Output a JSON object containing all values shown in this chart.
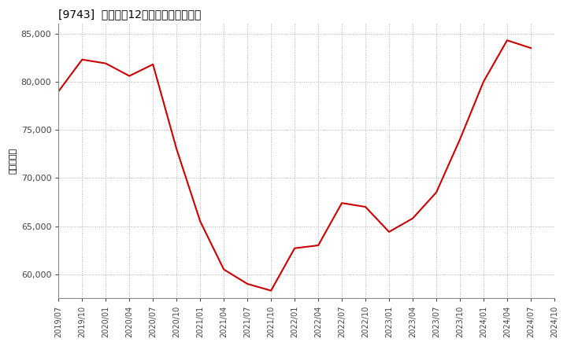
{
  "title": "[9743]  売上高の12か月移動合計の推移",
  "ylabel": "（百万円）",
  "line_color": "#cc0000",
  "background_color": "#ffffff",
  "grid_color": "#b0b0b0",
  "ylim": [
    57500,
    86000
  ],
  "yticks": [
    60000,
    65000,
    70000,
    75000,
    80000,
    85000
  ],
  "xtick_labels": [
    "2019/07",
    "2019/10",
    "2020/01",
    "2020/04",
    "2020/07",
    "2020/10",
    "2021/01",
    "2021/04",
    "2021/07",
    "2021/10",
    "2022/01",
    "2022/04",
    "2022/07",
    "2022/10",
    "2023/01",
    "2023/04",
    "2023/07",
    "2023/10",
    "2024/01",
    "2024/04",
    "2024/07",
    "2024/10"
  ],
  "data": [
    [
      "2019/07",
      79000
    ],
    [
      "2019/10",
      82300
    ],
    [
      "2020/01",
      81900
    ],
    [
      "2020/04",
      80600
    ],
    [
      "2020/07",
      81800
    ],
    [
      "2020/10",
      73000
    ],
    [
      "2021/01",
      65500
    ],
    [
      "2021/04",
      60500
    ],
    [
      "2021/07",
      59000
    ],
    [
      "2021/10",
      58300
    ],
    [
      "2022/01",
      62700
    ],
    [
      "2022/04",
      63000
    ],
    [
      "2022/07",
      67400
    ],
    [
      "2022/10",
      67000
    ],
    [
      "2023/01",
      64400
    ],
    [
      "2023/04",
      65800
    ],
    [
      "2023/07",
      68500
    ],
    [
      "2023/10",
      74000
    ],
    [
      "2024/01",
      80000
    ],
    [
      "2024/04",
      84300
    ],
    [
      "2024/07",
      83500
    ]
  ]
}
